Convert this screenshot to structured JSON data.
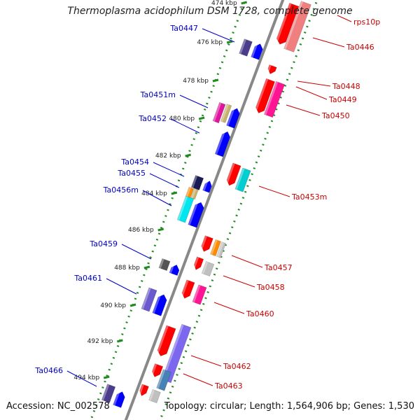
{
  "title": "Thermoplasma acidophilum DSM 1728, complete genome",
  "footer": {
    "accession": "Accession: NC_002578",
    "summary": "Topology: circular; Length: 1,564,906 bp; Genes: 1,530"
  },
  "colors": {
    "minus_strand_label": "#0000cc",
    "plus_strand_label": "#cc0000",
    "backbone": "#888888",
    "dotted_track": "#228b22",
    "blue_gene": "#0000ff",
    "red_gene": "#ff0000"
  },
  "scale": {
    "ticks": [
      {
        "label": "474 kbp"
      },
      {
        "label": "476 kbp"
      },
      {
        "label": "478 kbp"
      },
      {
        "label": "480 kbp"
      },
      {
        "label": "482 kbp"
      },
      {
        "label": "484 kbp"
      },
      {
        "label": "486 kbp"
      },
      {
        "label": "488 kbp"
      },
      {
        "label": "490 kbp"
      },
      {
        "label": "492 kbp"
      },
      {
        "label": "494 kbp"
      }
    ]
  },
  "labels_left": [
    {
      "text": "Ta0447"
    },
    {
      "text": "Ta0451m"
    },
    {
      "text": "Ta0452"
    },
    {
      "text": "Ta0454"
    },
    {
      "text": "Ta0455"
    },
    {
      "text": "Ta0456m"
    },
    {
      "text": "Ta0459"
    },
    {
      "text": "Ta0461"
    },
    {
      "text": "Ta0466"
    }
  ],
  "labels_right": [
    {
      "text": "rps10p"
    },
    {
      "text": "Ta0446"
    },
    {
      "text": "Ta0448"
    },
    {
      "text": "Ta0449"
    },
    {
      "text": "Ta0450"
    },
    {
      "text": "Ta0453m"
    },
    {
      "text": "Ta0457"
    },
    {
      "text": "Ta0458"
    },
    {
      "text": "Ta0460"
    },
    {
      "text": "Ta0462"
    },
    {
      "text": "Ta0463"
    }
  ]
}
